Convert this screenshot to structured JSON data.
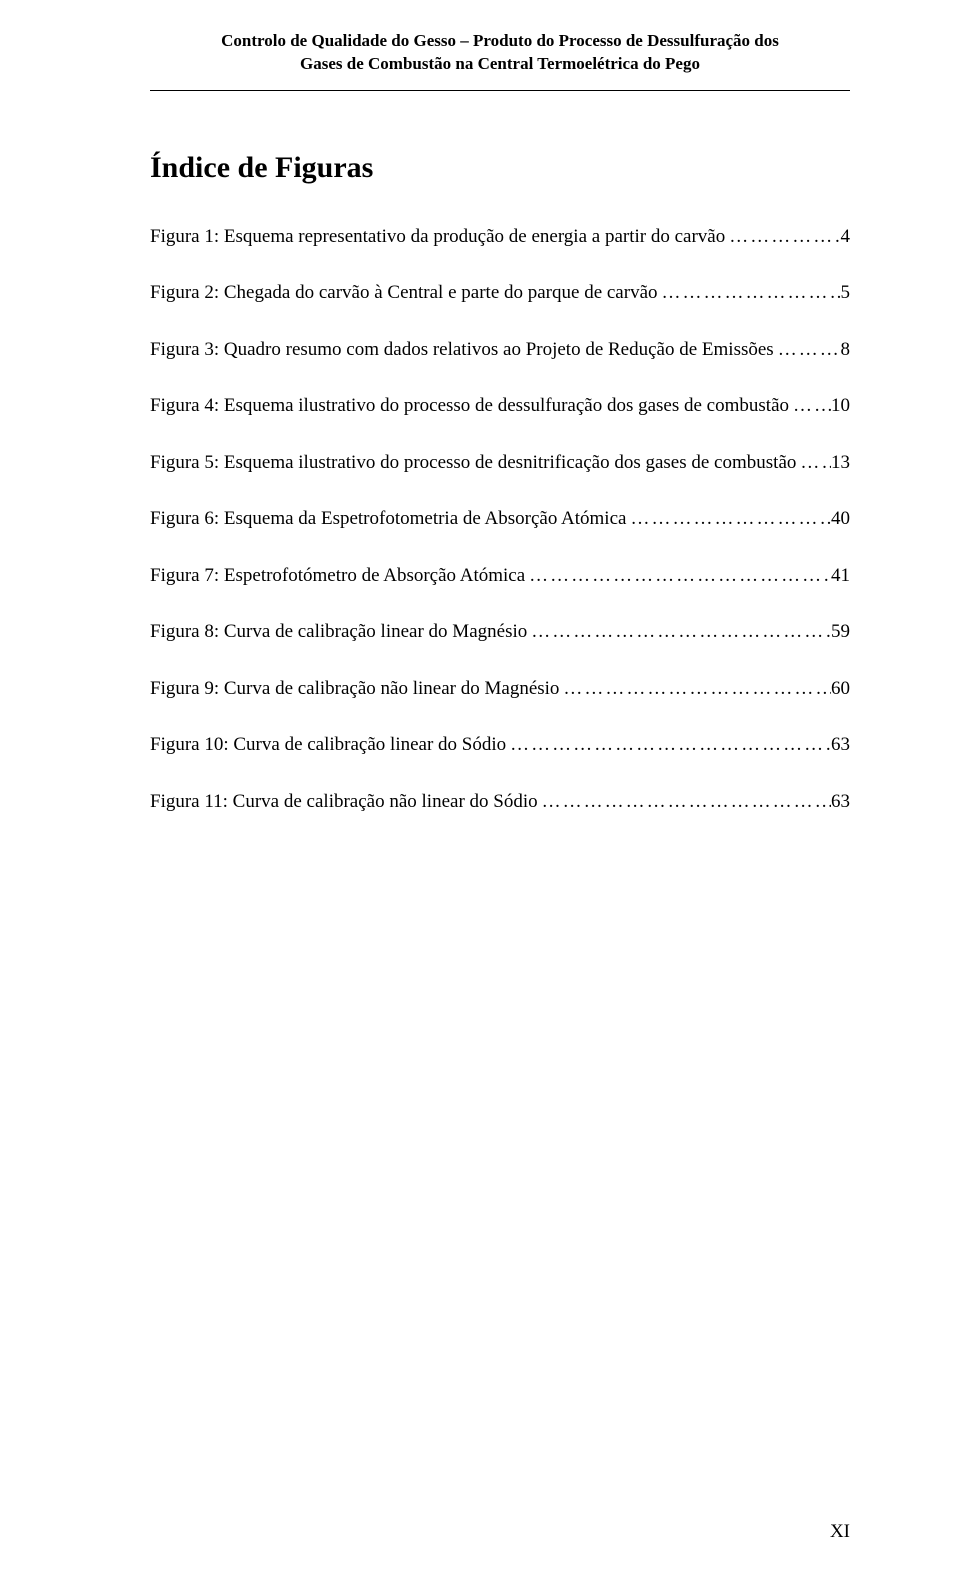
{
  "header": {
    "line1": "Controlo de Qualidade do Gesso – Produto do Processo de Dessulfuração dos",
    "line2": "Gases de Combustão na Central Termoelétrica do Pego"
  },
  "title": "Índice de Figuras",
  "entries": [
    {
      "label": "Figura 1: Esquema representativo da produção de energia a partir do carvão",
      "page": "4"
    },
    {
      "label": "Figura 2: Chegada do carvão à Central e parte do parque de carvão",
      "page": "5"
    },
    {
      "label": "Figura 3: Quadro resumo com dados relativos ao Projeto de Redução de Emissões",
      "page": "8"
    },
    {
      "label": "Figura 4: Esquema ilustrativo do processo de dessulfuração dos gases de combustão",
      "page": "10"
    },
    {
      "label": "Figura 5: Esquema ilustrativo do processo de desnitrificação dos gases de combustão",
      "page": "13"
    },
    {
      "label": "Figura 6: Esquema da Espetrofotometria de Absorção Atómica",
      "page": "40"
    },
    {
      "label": "Figura 7: Espetrofotómetro de Absorção Atómica",
      "page": "41"
    },
    {
      "label": "Figura 8: Curva de calibração linear do Magnésio",
      "page": "59"
    },
    {
      "label": "Figura 9: Curva de calibração não linear do Magnésio",
      "page": "60"
    },
    {
      "label": "Figura 10: Curva de calibração linear do Sódio",
      "page": "63"
    },
    {
      "label": "Figura 11: Curva de calibração não linear do Sódio",
      "page": "63"
    }
  ],
  "footer_page_number": "XI"
}
